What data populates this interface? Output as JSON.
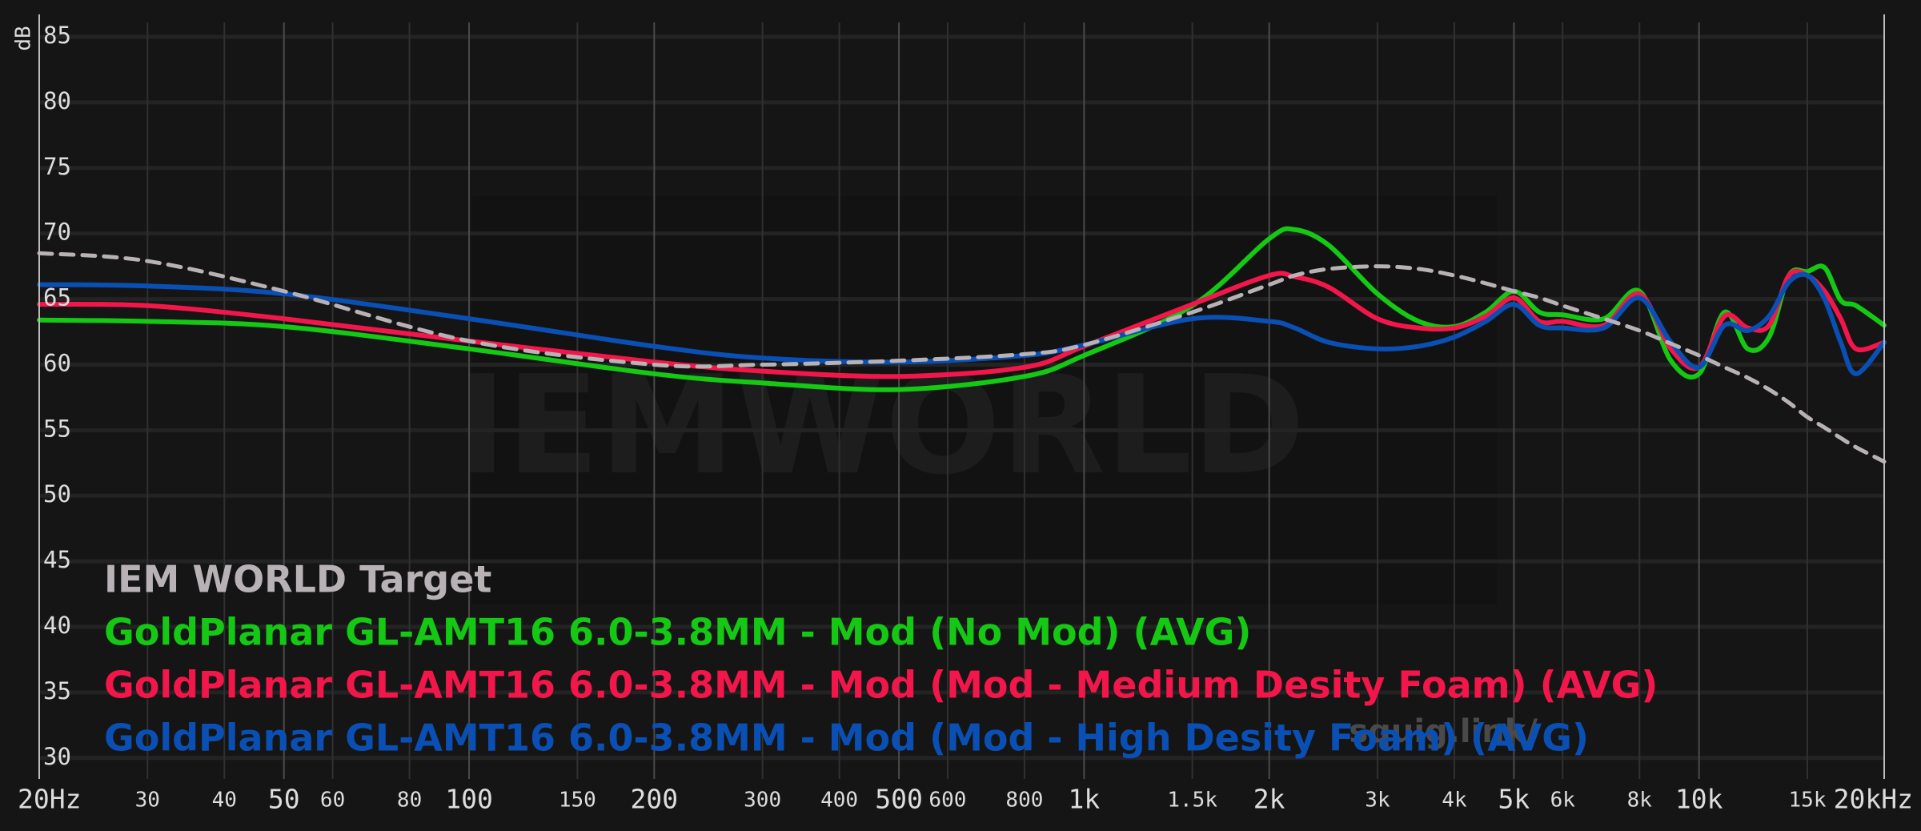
{
  "chart_data": {
    "type": "line",
    "y_label": "dB",
    "watermark": [
      "IEMWORLD",
      "squig.link/"
    ],
    "xscale": "log",
    "grid": true,
    "legend": "lower left",
    "xlim": [
      20,
      20000
    ],
    "ylim": [
      28.4,
      86.1
    ],
    "yticks": [
      30,
      35,
      40,
      45,
      50,
      55,
      60,
      65,
      70,
      75,
      80,
      85
    ],
    "xticks": [
      {
        "value": 20,
        "label": "20Hz"
      },
      30,
      40,
      50,
      60,
      80,
      100,
      150,
      200,
      300,
      400,
      500,
      600,
      800,
      {
        "value": 1000,
        "label": "1k"
      },
      {
        "value": 1500,
        "label": "1.5k"
      },
      {
        "value": 2000,
        "label": "2k"
      },
      {
        "value": 3000,
        "label": "3k"
      },
      {
        "value": 4000,
        "label": "4k"
      },
      {
        "value": 5000,
        "label": "5k"
      },
      {
        "value": 6000,
        "label": "6k"
      },
      {
        "value": 8000,
        "label": "8k"
      },
      {
        "value": 10000,
        "label": "10k"
      },
      {
        "value": 15000,
        "label": "15k"
      },
      {
        "value": 20000,
        "label": "20kHz"
      }
    ],
    "x": [
      20,
      30,
      50,
      100,
      200,
      300,
      500,
      800,
      1000,
      1500,
      2000,
      2200,
      2500,
      3000,
      3500,
      4000,
      4500,
      5000,
      5500,
      6000,
      7000,
      8000,
      9000,
      10000,
      11000,
      12000,
      13000,
      14000,
      15000,
      16000,
      17000,
      18000,
      20000
    ],
    "series": [
      {
        "name": "IEM WORLD Target",
        "color": "#b8b2b6",
        "dashed": true,
        "values": [
          68.5,
          67.9,
          65.6,
          61.8,
          60.0,
          60.0,
          60.3,
          60.8,
          61.5,
          64.0,
          66.1,
          66.8,
          67.3,
          67.5,
          67.3,
          66.8,
          66.2,
          65.6,
          65.1,
          64.5,
          63.5,
          62.6,
          61.6,
          60.7,
          59.8,
          59.0,
          58.1,
          57.1,
          56.0,
          55.2,
          54.4,
          53.7,
          52.6
        ]
      },
      {
        "name": "GoldPlanar GL-AMT16 6.0-3.8MM - Mod (No Mod) (AVG)",
        "color": "#14c814",
        "values": [
          63.4,
          63.3,
          62.9,
          61.2,
          59.3,
          58.6,
          58.1,
          59.1,
          60.7,
          64.5,
          69.6,
          70.3,
          69.1,
          65.4,
          63.3,
          62.9,
          64.0,
          65.6,
          64.0,
          63.8,
          63.5,
          65.6,
          60.3,
          59.3,
          64.0,
          61.2,
          62.1,
          66.8,
          67.1,
          67.4,
          64.9,
          64.5,
          63.0
        ]
      },
      {
        "name": "GoldPlanar GL-AMT16 6.0-3.8MM - Mod (Mod - Medium Desity Foam) (AVG)",
        "color": "#f2164a",
        "values": [
          64.6,
          64.5,
          63.5,
          61.8,
          60.2,
          59.5,
          59.1,
          59.8,
          61.4,
          64.6,
          66.8,
          66.7,
          65.9,
          63.5,
          62.8,
          62.8,
          63.7,
          65.1,
          63.3,
          63.3,
          63.0,
          65.4,
          61.2,
          59.8,
          63.7,
          62.8,
          63.0,
          66.8,
          66.8,
          65.6,
          63.5,
          61.2,
          61.7
        ]
      },
      {
        "name": "GoldPlanar GL-AMT16 6.0-3.8MM - Mod (Mod - High Desity Foam) (AVG)",
        "color": "#0a4fb4",
        "values": [
          66.1,
          66.0,
          65.4,
          63.5,
          61.4,
          60.5,
          60.2,
          60.7,
          61.5,
          63.5,
          63.3,
          62.8,
          61.7,
          61.2,
          61.4,
          62.1,
          63.3,
          64.6,
          63.0,
          62.8,
          62.8,
          65.1,
          61.7,
          59.8,
          63.0,
          62.6,
          63.7,
          66.3,
          66.8,
          65.0,
          61.7,
          59.3,
          61.7
        ]
      }
    ]
  }
}
